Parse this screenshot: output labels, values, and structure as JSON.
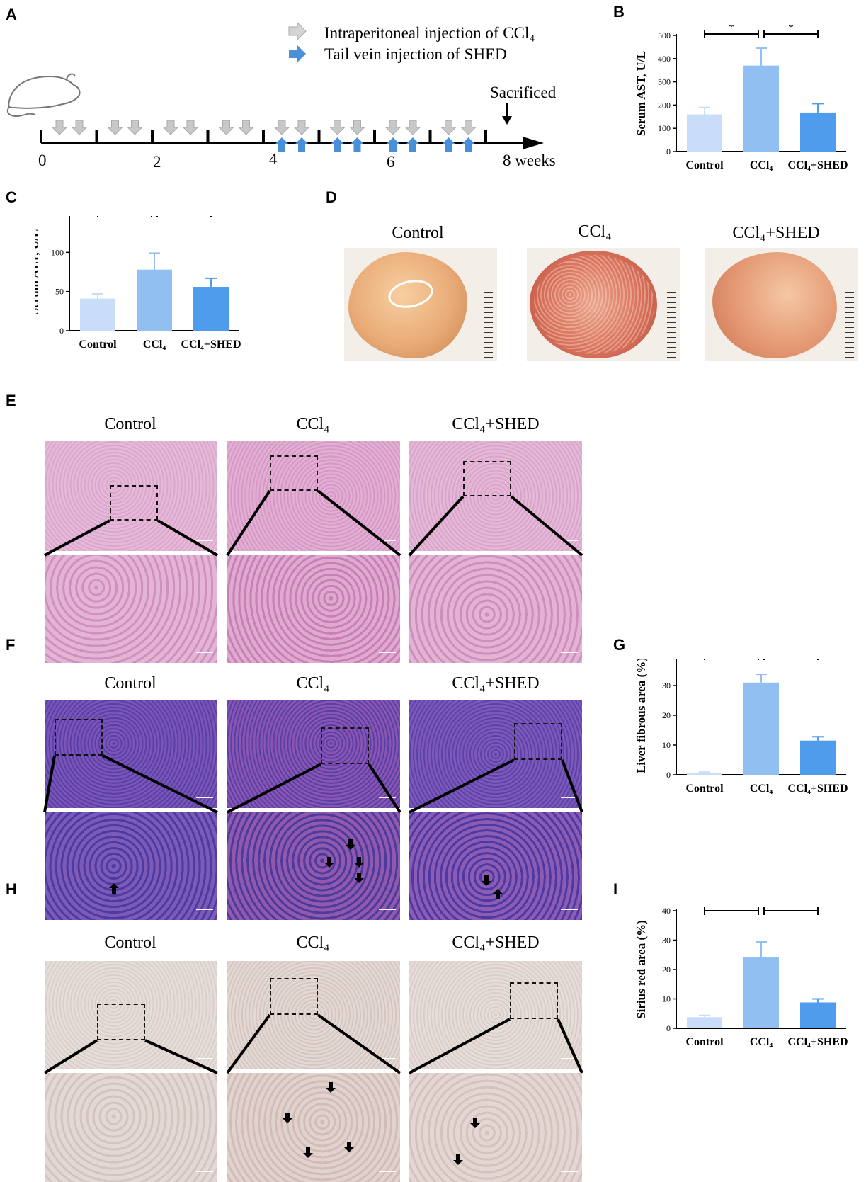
{
  "panels": {
    "a": "A",
    "b": "B",
    "c": "C",
    "d": "D",
    "e": "E",
    "f": "F",
    "g": "G",
    "h": "H",
    "i": "I"
  },
  "timeline": {
    "legend_ccl4": "Intraperitoneal injection of CCl₄",
    "legend_shed": "Tail vein injection of SHED",
    "sacrificed": "Sacrificed",
    "ticks": [
      "0",
      "2",
      "4",
      "6",
      "8 weeks"
    ],
    "arrow_colors": {
      "ccl4": "#c8c8c8",
      "shed": "#4a90d9"
    }
  },
  "groups": {
    "control": "Control",
    "ccl4": "CCl₄",
    "ccl4_shed": "CCl₄+SHED"
  },
  "colors": {
    "control_bar": "#c9dcf8",
    "ccl4_bar": "#92bff2",
    "shed_bar": "#4f9bec"
  },
  "chart_data": [
    {
      "id": "B",
      "type": "bar",
      "categories": [
        "Control",
        "CCl4",
        "CCl4+SHED"
      ],
      "values": [
        160,
        370,
        168
      ],
      "errors": [
        30,
        75,
        38
      ],
      "ylabel": "Serum AST, U/L",
      "ylim": [
        0,
        500
      ],
      "yticks": [
        0,
        100,
        200,
        300,
        400,
        500
      ],
      "significance": [
        "*",
        "*"
      ]
    },
    {
      "id": "C",
      "type": "bar",
      "categories": [
        "Control",
        "CCl4",
        "CCl4+SHED"
      ],
      "values": [
        41,
        78,
        56
      ],
      "errors": [
        6,
        21,
        11
      ],
      "ylabel": "Serum ALT, U/L",
      "ylim": [
        0,
        150
      ],
      "yticks": [
        0,
        50,
        100,
        150
      ],
      "significance": [
        "*",
        "*"
      ]
    },
    {
      "id": "G",
      "type": "bar",
      "categories": [
        "Control",
        "CCl4",
        "CCl4+SHED"
      ],
      "values": [
        0.6,
        31,
        11.5
      ],
      "errors": [
        0.3,
        2.8,
        1.3
      ],
      "ylabel": "Liver fibrous area (%)",
      "ylim": [
        0,
        40
      ],
      "yticks": [
        0,
        10,
        20,
        30,
        40
      ],
      "significance": [
        "***",
        "***"
      ]
    },
    {
      "id": "I",
      "type": "bar",
      "categories": [
        "Control",
        "CCl4",
        "CCl4+SHED"
      ],
      "values": [
        3.8,
        24.2,
        8.8
      ],
      "errors": [
        0.6,
        5.2,
        1.2
      ],
      "ylabel": "Sirius red area (%)",
      "ylim": [
        0,
        40
      ],
      "yticks": [
        0,
        10,
        20,
        30,
        40
      ],
      "significance": [
        "***",
        "**"
      ]
    }
  ]
}
